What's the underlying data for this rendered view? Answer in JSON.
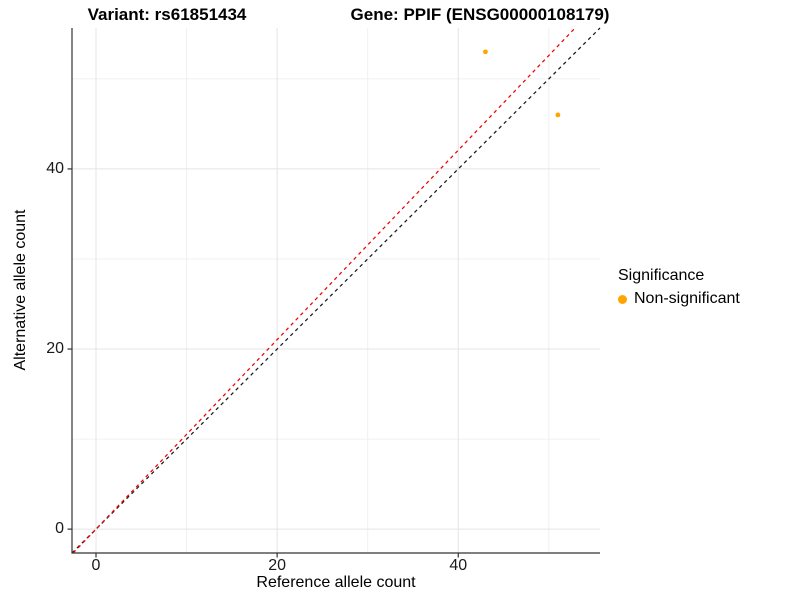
{
  "chart_data": {
    "type": "scatter",
    "title_left": "Variant: rs61851434",
    "title_right": "Gene: PPIF (ENSG00000108179)",
    "xlabel": "Reference allele count",
    "ylabel": "Alternative allele count",
    "xlim": [
      -2.65,
      55.65
    ],
    "ylim": [
      -2.65,
      55.65
    ],
    "x_ticks": [
      0,
      20,
      40
    ],
    "y_ticks": [
      0,
      20,
      40
    ],
    "x_minor_ticks": [
      10,
      30,
      50
    ],
    "y_minor_ticks": [
      10,
      30,
      50
    ],
    "grid": true,
    "points": [
      {
        "x": 43,
        "y": 53,
        "significance": "Non-significant"
      },
      {
        "x": 51,
        "y": 46,
        "significance": "Non-significant"
      }
    ],
    "point_color": "#FFA500",
    "point_radius": 2.4,
    "lines": [
      {
        "name": "identity-line",
        "slope": 1.0,
        "intercept": 0,
        "color": "#1a1a1a",
        "dashed": true
      },
      {
        "name": "fitted-ratio-line",
        "slope": 1.052,
        "intercept": 0,
        "color": "#F00000",
        "dashed": true
      }
    ],
    "colors": {
      "grid_major": "#e4e4e4",
      "grid_minor": "#f0f0f0",
      "axis": "#333333"
    },
    "legend": {
      "title": "Significance",
      "position": "right",
      "items": [
        {
          "label": "Non-significant",
          "color": "#FFA500"
        }
      ]
    }
  }
}
